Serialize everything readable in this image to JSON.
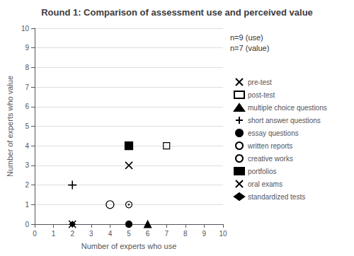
{
  "chart_data": {
    "type": "scatter",
    "title": "Round 1: Comparison of assessment use and perceived value",
    "xlabel": "Number of experts who use",
    "ylabel": "Number of experts who value",
    "xlim": [
      0,
      10
    ],
    "ylim": [
      0,
      10
    ],
    "xticks": [
      0,
      1,
      2,
      3,
      4,
      5,
      6,
      7,
      8,
      9,
      10
    ],
    "yticks": [
      0,
      1,
      2,
      3,
      4,
      5,
      6,
      7,
      8,
      9,
      10
    ],
    "grid": "y",
    "legend": "right",
    "annotation": "n=9 (use)\nn=7 (value)",
    "series": [
      {
        "name": "pre-test",
        "color": "black",
        "marker": "x",
        "x": [
          5
        ],
        "values": [
          3
        ]
      },
      {
        "name": "post-test",
        "color": "black",
        "marker": "square-open",
        "x": [
          7
        ],
        "values": [
          4
        ]
      },
      {
        "name": "multiple choice questions",
        "color": "black",
        "marker": "triangle",
        "x": [
          6
        ],
        "values": [
          0
        ]
      },
      {
        "name": "short answer questions",
        "color": "black",
        "marker": "plus",
        "x": [
          2
        ],
        "values": [
          2
        ]
      },
      {
        "name": "essay questions",
        "color": "black",
        "marker": "circle",
        "x": [
          5
        ],
        "values": [
          0
        ]
      },
      {
        "name": "written reports",
        "color": "black",
        "marker": "circle-open",
        "x": [
          4
        ],
        "values": [
          1
        ]
      },
      {
        "name": "creative works",
        "color": "black",
        "marker": "circle-dot",
        "x": [
          5
        ],
        "values": [
          1
        ]
      },
      {
        "name": "portfolios",
        "color": "black",
        "marker": "square",
        "x": [
          5
        ],
        "values": [
          4
        ]
      },
      {
        "name": "oral exams",
        "color": "black",
        "marker": "x",
        "x": [
          2
        ],
        "values": [
          0
        ]
      },
      {
        "name": "standardized tests",
        "color": "black",
        "marker": "diamond",
        "x": [
          2
        ],
        "values": [
          0
        ]
      }
    ]
  }
}
